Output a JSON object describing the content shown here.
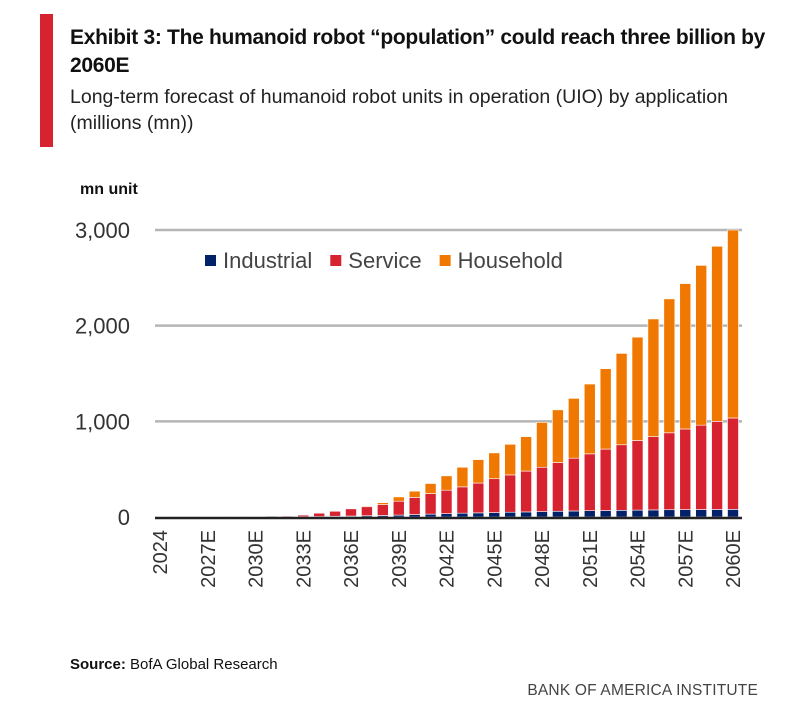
{
  "header": {
    "title": "Exhibit 3: The humanoid robot “population” could reach three billion by 2060E",
    "subtitle": "Long-term forecast of humanoid robot units in operation (UIO) by application (millions (mn))",
    "accent_color": "#d7222f"
  },
  "chart_data": {
    "type": "bar",
    "stacked": true,
    "ylabel": "mn unit",
    "ylim": [
      0,
      3000
    ],
    "yticks": [
      0,
      1000,
      2000,
      3000
    ],
    "ytick_labels": [
      "0",
      "1,000",
      "2,000",
      "3,000"
    ],
    "grid": true,
    "legend_placement": "top",
    "categories": [
      "2024",
      "2025E",
      "2026E",
      "2027E",
      "2028E",
      "2029E",
      "2030E",
      "2031E",
      "2032E",
      "2033E",
      "2034E",
      "2035E",
      "2036E",
      "2037E",
      "2038E",
      "2039E",
      "2040E",
      "2041E",
      "2042E",
      "2043E",
      "2044E",
      "2045E",
      "2046E",
      "2047E",
      "2048E",
      "2049E",
      "2050E",
      "2051E",
      "2052E",
      "2053E",
      "2054E",
      "2055E",
      "2056E",
      "2057E",
      "2058E",
      "2059E",
      "2060E"
    ],
    "xtick_labels": [
      "2024",
      "2027E",
      "2030E",
      "2033E",
      "2036E",
      "2039E",
      "2042E",
      "2045E",
      "2048E",
      "2051E",
      "2054E",
      "2057E",
      "2060E"
    ],
    "series": [
      {
        "name": "Industrial",
        "color": "#012169",
        "values": [
          0,
          1,
          1,
          2,
          2,
          3,
          3,
          5,
          8,
          3,
          5,
          8,
          10,
          13,
          16,
          20,
          25,
          30,
          35,
          40,
          43,
          46,
          50,
          53,
          56,
          60,
          63,
          66,
          68,
          70,
          72,
          74,
          76,
          77,
          78,
          79,
          80
        ]
      },
      {
        "name": "Service",
        "color": "#d7222f",
        "values": [
          0,
          0,
          0,
          0,
          0,
          0,
          0,
          0,
          2,
          17,
          35,
          52,
          75,
          97,
          114,
          145,
          180,
          215,
          245,
          275,
          312,
          354,
          390,
          427,
          464,
          510,
          552,
          594,
          642,
          685,
          728,
          766,
          804,
          843,
          882,
          921,
          955
        ]
      },
      {
        "name": "Household",
        "color": "#f07800",
        "values": [
          0,
          0,
          0,
          0,
          0,
          0,
          0,
          0,
          0,
          0,
          0,
          0,
          0,
          5,
          20,
          45,
          65,
          105,
          150,
          205,
          245,
          270,
          320,
          360,
          470,
          550,
          625,
          730,
          840,
          955,
          1080,
          1230,
          1400,
          1520,
          1670,
          1830,
          1965
        ]
      }
    ]
  },
  "footer": {
    "source_label": "Source:",
    "source_text": "BofA Global Research",
    "brand": "BANK OF AMERICA INSTITUTE"
  }
}
